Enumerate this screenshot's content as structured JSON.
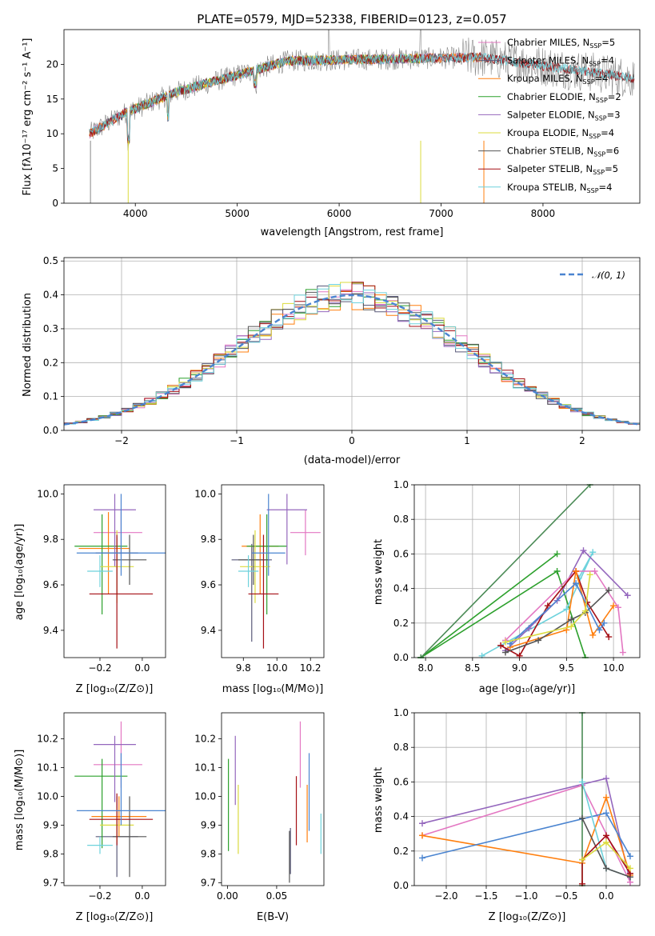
{
  "chart_data": [
    {
      "id": "spectrum",
      "type": "line",
      "title": "PLATE=0579, MJD=52338, FIBERID=0123, z=0.057",
      "xlabel": "wavelength [Angstrom, rest frame]",
      "ylabel": "Flux [fλ10⁻¹⁷ erg cm⁻² s⁻¹ A⁻¹]",
      "xlim": [
        3300,
        8950
      ],
      "ylim": [
        0,
        25
      ],
      "xticks": [
        4000,
        5000,
        6000,
        7000,
        8000
      ],
      "yticks": [
        0,
        5,
        10,
        15,
        20
      ],
      "grid": false,
      "legend": "right",
      "series": [
        {
          "name": "Chabrier MILES, N",
          "sub": "SSP",
          "suffix": "=5",
          "color": "#e377c2",
          "range": [
            3550,
            7400
          ]
        },
        {
          "name": "Salpeter MILES, N",
          "sub": "SSP",
          "suffix": "=4",
          "color": "#5a5a7a",
          "range": [
            3550,
            7400
          ]
        },
        {
          "name": "Kroupa MILES, N",
          "sub": "SSP",
          "suffix": "=4",
          "color": "#ff7f0e",
          "range": [
            3550,
            7400
          ]
        },
        {
          "name": "Chabrier ELODIE, N",
          "sub": "SSP",
          "suffix": "=2",
          "color": "#2ca02c",
          "range": [
            3900,
            6800
          ]
        },
        {
          "name": "Salpeter ELODIE, N",
          "sub": "SSP",
          "suffix": "=3",
          "color": "#9467bd",
          "range": [
            3900,
            6800
          ]
        },
        {
          "name": "Kroupa ELODIE, N",
          "sub": "SSP",
          "suffix": "=4",
          "color": "#dbdb3d",
          "range": [
            3900,
            6800
          ]
        },
        {
          "name": "Chabrier STELIB, N",
          "sub": "SSP",
          "suffix": "=6",
          "color": "#555555",
          "range": [
            3550,
            8900
          ]
        },
        {
          "name": "Salpeter STELIB, N",
          "sub": "SSP",
          "suffix": "=5",
          "color": "#a50f15",
          "range": [
            3550,
            8900
          ]
        },
        {
          "name": "Kroupa STELIB, N",
          "sub": "SSP",
          "suffix": "=4",
          "color": "#6ed2dc",
          "range": [
            3550,
            8900
          ]
        }
      ]
    },
    {
      "id": "residuals",
      "type": "histogram",
      "xlabel": "(data-model)/error",
      "ylabel": "Normed distribution",
      "xlim": [
        -2.5,
        2.5
      ],
      "ylim": [
        0,
        0.51
      ],
      "xticks": [
        -2,
        -1,
        0,
        1,
        2
      ],
      "yticks": [
        0.0,
        0.1,
        0.2,
        0.3,
        0.4,
        0.5
      ],
      "grid": true,
      "legend": "top-right",
      "reference_label": "𝒩(0, 1)",
      "reference_color": "#4a84d0",
      "bin_width": 0.1
    },
    {
      "id": "age_vs_Z",
      "type": "errorbar",
      "xlabel": "Z [log₁₀(Z/Z⊙)]",
      "ylabel": "age  [log₁₀(age/yr)]",
      "xlim": [
        -0.37,
        0.11
      ],
      "ylim": [
        9.28,
        10.04
      ],
      "xticks": [
        -0.2,
        0.0
      ],
      "yticks": [
        9.4,
        9.6,
        9.8,
        10.0
      ],
      "points": [
        {
          "x": -0.1,
          "xerr": [
            0.13,
            0.1
          ],
          "y": 9.83,
          "yerr": [
            0.1,
            0.1
          ],
          "color": "#e377c2"
        },
        {
          "x": -0.12,
          "xerr": [
            0.1,
            0.1
          ],
          "y": 9.74,
          "yerr": [
            0.18,
            0.07
          ],
          "color": "#5a5a7a"
        },
        {
          "x": -0.16,
          "xerr": [
            0.14,
            0.1
          ],
          "y": 9.76,
          "yerr": [
            0.2,
            0.16
          ],
          "color": "#ff7f0e"
        },
        {
          "x": -0.19,
          "xerr": [
            0.13,
            0.12
          ],
          "y": 9.77,
          "yerr": [
            0.3,
            0.14
          ],
          "color": "#2ca02c"
        },
        {
          "x": -0.13,
          "xerr": [
            0.1,
            0.1
          ],
          "y": 9.93,
          "yerr": [
            0.25,
            0.07
          ],
          "color": "#9467bd"
        },
        {
          "x": -0.12,
          "xerr": [
            0.08,
            0.08
          ],
          "y": 9.68,
          "yerr": [
            0.16,
            0.16
          ],
          "color": "#dbdb3d"
        },
        {
          "x": -0.06,
          "xerr": [
            0.08,
            0.08
          ],
          "y": 9.71,
          "yerr": [
            0.11,
            0.11
          ],
          "color": "#555555"
        },
        {
          "x": -0.12,
          "xerr": [
            0.13,
            0.17
          ],
          "y": 9.56,
          "yerr": [
            0.24,
            0.26
          ],
          "color": "#a50f15"
        },
        {
          "x": -0.2,
          "xerr": [
            0.06,
            0.06
          ],
          "y": 9.66,
          "yerr": [
            0.07,
            0.07
          ],
          "color": "#6ed2dc"
        },
        {
          "x": -0.1,
          "xerr": [
            0.21,
            0.21
          ],
          "y": 9.74,
          "yerr": [
            0.1,
            0.26
          ],
          "color": "#4a84d0"
        }
      ]
    },
    {
      "id": "age_vs_mass",
      "type": "errorbar",
      "xlabel": "mass [log₁₀(M/M⊙)]",
      "ylabel": "",
      "xlim": [
        9.67,
        10.28
      ],
      "ylim": [
        9.28,
        10.04
      ],
      "xticks": [
        9.8,
        10.0,
        10.2
      ],
      "yticks": [
        9.4,
        9.6,
        9.8,
        10.0
      ],
      "points": [
        {
          "x": 10.17,
          "xerr": [
            0.09,
            0.09
          ],
          "y": 9.83,
          "yerr": [
            0.1,
            0.1
          ],
          "color": "#e377c2"
        },
        {
          "x": 9.85,
          "xerr": [
            0.12,
            0.12
          ],
          "y": 9.71,
          "yerr": [
            0.36,
            0.07
          ],
          "color": "#5a5a7a"
        },
        {
          "x": 9.9,
          "xerr": [
            0.11,
            0.11
          ],
          "y": 9.77,
          "yerr": [
            0.21,
            0.14
          ],
          "color": "#ff7f0e"
        },
        {
          "x": 9.94,
          "xerr": [
            0.12,
            0.12
          ],
          "y": 9.77,
          "yerr": [
            0.3,
            0.14
          ],
          "color": "#2ca02c"
        },
        {
          "x": 10.06,
          "xerr": [
            0.12,
            0.12
          ],
          "y": 9.93,
          "yerr": [
            0.24,
            0.07
          ],
          "color": "#9467bd"
        },
        {
          "x": 9.87,
          "xerr": [
            0.09,
            0.09
          ],
          "y": 9.68,
          "yerr": [
            0.16,
            0.16
          ],
          "color": "#dbdb3d"
        },
        {
          "x": 9.86,
          "xerr": [
            0.09,
            0.09
          ],
          "y": 9.71,
          "yerr": [
            0.11,
            0.11
          ],
          "color": "#555555"
        },
        {
          "x": 9.92,
          "xerr": [
            0.09,
            0.09
          ],
          "y": 9.56,
          "yerr": [
            0.24,
            0.26
          ],
          "color": "#a50f15"
        },
        {
          "x": 9.83,
          "xerr": [
            0.06,
            0.06
          ],
          "y": 9.66,
          "yerr": [
            0.07,
            0.07
          ],
          "color": "#6ed2dc"
        },
        {
          "x": 9.95,
          "xerr": [
            0.1,
            0.1
          ],
          "y": 9.74,
          "yerr": [
            0.1,
            0.26
          ],
          "color": "#4a84d0"
        }
      ]
    },
    {
      "id": "weight_vs_age",
      "type": "line",
      "xlabel": "age  [log₁₀(age/yr)]",
      "ylabel": "mass weight",
      "xlim": [
        7.88,
        10.28
      ],
      "ylim": [
        0,
        1
      ],
      "xticks": [
        8.0,
        8.5,
        9.0,
        9.5,
        10.0
      ],
      "yticks": [
        0.0,
        0.2,
        0.4,
        0.6,
        0.8,
        1.0
      ],
      "grid": true,
      "series": [
        {
          "color": "#2ca02c",
          "x": [
            7.95,
            9.4,
            9.7
          ],
          "y": [
            0.0,
            0.5,
            0.0
          ]
        },
        {
          "color": "#2ca02c",
          "x": [
            7.95,
            9.4
          ],
          "y": [
            0.0,
            0.6
          ]
        },
        {
          "color": "#4a8a55",
          "x": [
            7.95,
            9.75
          ],
          "y": [
            0.0,
            1.0
          ]
        },
        {
          "color": "#6ed2dc",
          "x": [
            8.6,
            9.5,
            9.78,
            9.63
          ],
          "y": [
            0.01,
            0.28,
            0.61,
            0.46
          ]
        },
        {
          "color": "#9467bd",
          "x": [
            8.85,
            9.1,
            9.4,
            9.68,
            10.15
          ],
          "y": [
            0.04,
            0.17,
            0.33,
            0.62,
            0.36
          ]
        },
        {
          "color": "#e377c2",
          "x": [
            8.85,
            9.6,
            9.8,
            10.05,
            10.1
          ],
          "y": [
            0.1,
            0.5,
            0.5,
            0.29,
            0.03
          ]
        },
        {
          "color": "#a50f15",
          "x": [
            8.8,
            9.0,
            9.3,
            9.6,
            9.72,
            9.95
          ],
          "y": [
            0.07,
            0.01,
            0.3,
            0.5,
            0.32,
            0.12
          ]
        },
        {
          "color": "#ff7f0e",
          "x": [
            8.9,
            9.5,
            9.6,
            9.78,
            10.0
          ],
          "y": [
            0.06,
            0.16,
            0.5,
            0.13,
            0.3
          ]
        },
        {
          "color": "#555555",
          "x": [
            8.85,
            9.2,
            9.55,
            9.7,
            9.95
          ],
          "y": [
            0.03,
            0.1,
            0.22,
            0.26,
            0.39
          ]
        },
        {
          "color": "#4a84d0",
          "x": [
            8.9,
            9.6,
            9.85,
            9.9
          ],
          "y": [
            0.08,
            0.43,
            0.16,
            0.2
          ]
        },
        {
          "color": "#dbdb3d",
          "x": [
            8.85,
            9.55,
            9.7,
            9.75
          ],
          "y": [
            0.09,
            0.18,
            0.27,
            0.48
          ]
        }
      ]
    },
    {
      "id": "mass_vs_Z",
      "type": "errorbar",
      "xlabel": "Z [log₁₀(Z/Z⊙)]",
      "ylabel": "mass [log₁₀(M/M⊙)]",
      "xlim": [
        -0.37,
        0.11
      ],
      "ylim": [
        9.69,
        10.29
      ],
      "xticks": [
        -0.2,
        0.0
      ],
      "yticks": [
        9.7,
        9.8,
        9.9,
        10.0,
        10.1,
        10.2
      ],
      "points": [
        {
          "x": -0.1,
          "xerr": [
            0.13,
            0.1
          ],
          "y": 10.11,
          "yerr": [
            0.08,
            0.15
          ],
          "color": "#e377c2"
        },
        {
          "x": -0.12,
          "xerr": [
            0.1,
            0.1
          ],
          "y": 9.86,
          "yerr": [
            0.14,
            0.14
          ],
          "color": "#5a5a7a"
        },
        {
          "x": -0.11,
          "xerr": [
            0.13,
            0.13
          ],
          "y": 9.93,
          "yerr": [
            0.07,
            0.07
          ],
          "color": "#ff7f0e"
        },
        {
          "x": -0.19,
          "xerr": [
            0.13,
            0.12
          ],
          "y": 10.07,
          "yerr": [
            0.25,
            0.06
          ],
          "color": "#2ca02c"
        },
        {
          "x": -0.13,
          "xerr": [
            0.1,
            0.1
          ],
          "y": 10.18,
          "yerr": [
            0.2,
            0.03
          ],
          "color": "#9467bd"
        },
        {
          "x": -0.12,
          "xerr": [
            0.08,
            0.08
          ],
          "y": 9.9,
          "yerr": [
            0.06,
            0.06
          ],
          "color": "#dbdb3d"
        },
        {
          "x": -0.06,
          "xerr": [
            0.08,
            0.08
          ],
          "y": 9.86,
          "yerr": [
            0.14,
            0.14
          ],
          "color": "#555555"
        },
        {
          "x": -0.12,
          "xerr": [
            0.13,
            0.17
          ],
          "y": 9.92,
          "yerr": [
            0.09,
            0.09
          ],
          "color": "#a50f15"
        },
        {
          "x": -0.2,
          "xerr": [
            0.06,
            0.06
          ],
          "y": 9.83,
          "yerr": [
            0.03,
            0.03
          ],
          "color": "#6ed2dc"
        },
        {
          "x": -0.1,
          "xerr": [
            0.21,
            0.21
          ],
          "y": 9.95,
          "yerr": [
            0.05,
            0.2
          ],
          "color": "#4a84d0"
        }
      ]
    },
    {
      "id": "mass_vs_EBV",
      "type": "errorbar",
      "xlabel": "E(B-V)",
      "ylabel": "",
      "xlim": [
        -0.006,
        0.098
      ],
      "ylim": [
        9.69,
        10.29
      ],
      "xticks": [
        0.0,
        0.05
      ],
      "yticks": [
        9.7,
        9.8,
        9.9,
        10.0,
        10.1,
        10.2
      ],
      "points": [
        {
          "x": 0.074,
          "xerr": [
            0,
            0
          ],
          "y": 10.1,
          "yerr": [
            0.07,
            0.16
          ],
          "color": "#e377c2"
        },
        {
          "x": 0.064,
          "xerr": [
            0,
            0
          ],
          "y": 9.8,
          "yerr": [
            0.07,
            0.09
          ],
          "color": "#5a5a7a"
        },
        {
          "x": 0.081,
          "xerr": [
            0,
            0
          ],
          "y": 9.94,
          "yerr": [
            0.1,
            0.1
          ],
          "color": "#ff7f0e"
        },
        {
          "x": 0.001,
          "xerr": [
            0,
            0
          ],
          "y": 9.97,
          "yerr": [
            0.16,
            0.16
          ],
          "color": "#2ca02c"
        },
        {
          "x": 0.008,
          "xerr": [
            0,
            0
          ],
          "y": 10.09,
          "yerr": [
            0.12,
            0.12
          ],
          "color": "#9467bd"
        },
        {
          "x": 0.011,
          "xerr": [
            0,
            0
          ],
          "y": 9.92,
          "yerr": [
            0.12,
            0.12
          ],
          "color": "#dbdb3d"
        },
        {
          "x": 0.063,
          "xerr": [
            0,
            0
          ],
          "y": 9.79,
          "yerr": [
            0.09,
            0.09
          ],
          "color": "#555555"
        },
        {
          "x": 0.07,
          "xerr": [
            0,
            0
          ],
          "y": 9.95,
          "yerr": [
            0.12,
            0.12
          ],
          "color": "#a50f15"
        },
        {
          "x": 0.095,
          "xerr": [
            0,
            0
          ],
          "y": 9.87,
          "yerr": [
            0.07,
            0.07
          ],
          "color": "#6ed2dc"
        },
        {
          "x": 0.083,
          "xerr": [
            0,
            0
          ],
          "y": 10.0,
          "yerr": [
            0.12,
            0.15
          ],
          "color": "#4a84d0"
        }
      ]
    },
    {
      "id": "weight_vs_Z",
      "type": "line",
      "xlabel": "Z [log₁₀(Z/Z⊙)]",
      "ylabel": "mass weight",
      "xlim": [
        -2.4,
        0.42
      ],
      "ylim": [
        0,
        1
      ],
      "xticks": [
        -2.0,
        -1.5,
        -1.0,
        -0.5,
        0.0
      ],
      "yticks": [
        0.0,
        0.2,
        0.4,
        0.6,
        0.8,
        1.0
      ],
      "grid": true,
      "series": [
        {
          "color": "#9467bd",
          "x": [
            -2.3,
            0.0,
            0.3
          ],
          "y": [
            0.36,
            0.62,
            0.02
          ]
        },
        {
          "color": "#e377c2",
          "x": [
            -2.3,
            -0.3,
            0.3
          ],
          "y": [
            0.29,
            0.58,
            0.02
          ]
        },
        {
          "color": "#ff7f0e",
          "x": [
            -2.3,
            -0.3,
            0.0,
            0.3
          ],
          "y": [
            0.29,
            0.13,
            0.51,
            0.06
          ]
        },
        {
          "color": "#4a84d0",
          "x": [
            -2.3,
            0.0,
            0.3
          ],
          "y": [
            0.16,
            0.42,
            0.17
          ]
        },
        {
          "color": "#4a8a55",
          "x": [
            -0.3,
            -0.3
          ],
          "y": [
            0.0,
            1.0
          ]
        },
        {
          "color": "#6ed2dc",
          "x": [
            -0.3,
            0.0,
            0.3
          ],
          "y": [
            0.6,
            0.1,
            0.05
          ]
        },
        {
          "color": "#555555",
          "x": [
            -0.3,
            0.0,
            0.3
          ],
          "y": [
            0.39,
            0.1,
            0.05
          ]
        },
        {
          "color": "#a50f15",
          "x": [
            -0.3,
            -0.3,
            0.0,
            0.3
          ],
          "y": [
            0.01,
            0.15,
            0.29,
            0.07
          ]
        },
        {
          "color": "#dbdb3d",
          "x": [
            -0.3,
            0.0,
            0.3
          ],
          "y": [
            0.15,
            0.25,
            0.1
          ]
        }
      ]
    }
  ]
}
